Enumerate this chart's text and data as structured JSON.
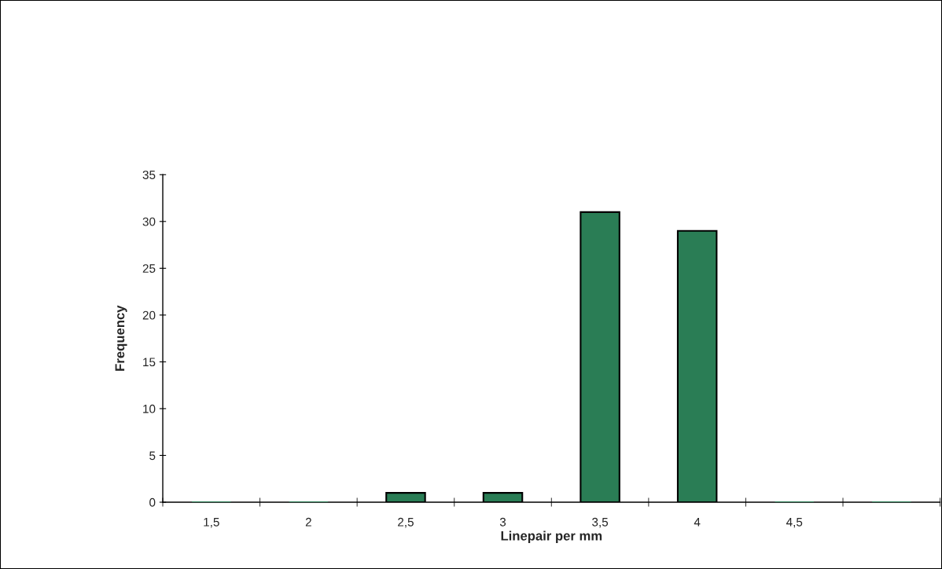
{
  "chart_data": {
    "type": "bar",
    "xlabel": "Linepair per mm",
    "ylabel": "Frequency",
    "categories": [
      "1,5",
      "2",
      "2,5",
      "3",
      "3,5",
      "4",
      "4,5",
      null
    ],
    "values": [
      0,
      0,
      1,
      1,
      31,
      29,
      0,
      0
    ],
    "color": "#2a7d55",
    "ylim": [
      0,
      35
    ],
    "yticks": [
      0,
      5,
      10,
      15,
      20,
      25,
      30,
      35
    ],
    "grid": false,
    "legend": false
  }
}
